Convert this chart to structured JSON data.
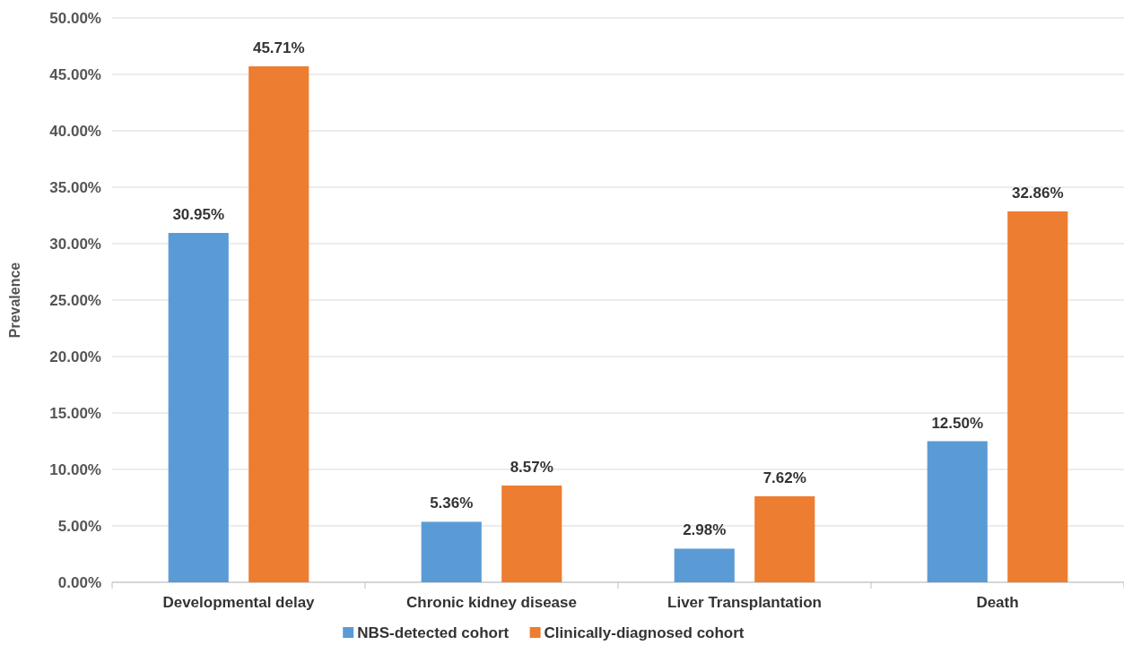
{
  "chart_data": {
    "type": "bar",
    "ylabel": "Prevalence",
    "categories": [
      "Developmental delay",
      "Chronic kidney disease",
      "Liver Transplantation",
      "Death"
    ],
    "series": [
      {
        "name": "NBS-detected cohort",
        "color": "#5b9bd5",
        "values": [
          30.95,
          5.36,
          2.98,
          12.5
        ],
        "value_labels": [
          "30.95%",
          "5.36%",
          "2.98%",
          "12.50%"
        ]
      },
      {
        "name": "Clinically-diagnosed cohort",
        "color": "#ed7d31",
        "values": [
          45.71,
          8.57,
          7.62,
          32.86
        ],
        "value_labels": [
          "45.71%",
          "8.57%",
          "7.62%",
          "32.86%"
        ]
      }
    ],
    "ylim": [
      0,
      50
    ],
    "yticks": [
      {
        "value": 0,
        "label": "0.00%"
      },
      {
        "value": 5,
        "label": "5.00%"
      },
      {
        "value": 10,
        "label": "10.00%"
      },
      {
        "value": 15,
        "label": "15.00%"
      },
      {
        "value": 20,
        "label": "20.00%"
      },
      {
        "value": 25,
        "label": "25.00%"
      },
      {
        "value": 30,
        "label": "30.00%"
      },
      {
        "value": 35,
        "label": "35.00%"
      },
      {
        "value": 40,
        "label": "40.00%"
      },
      {
        "value": 45,
        "label": "45.00%"
      },
      {
        "value": 50,
        "label": "50.00%"
      }
    ],
    "grid": "y",
    "legend": "bottom"
  }
}
